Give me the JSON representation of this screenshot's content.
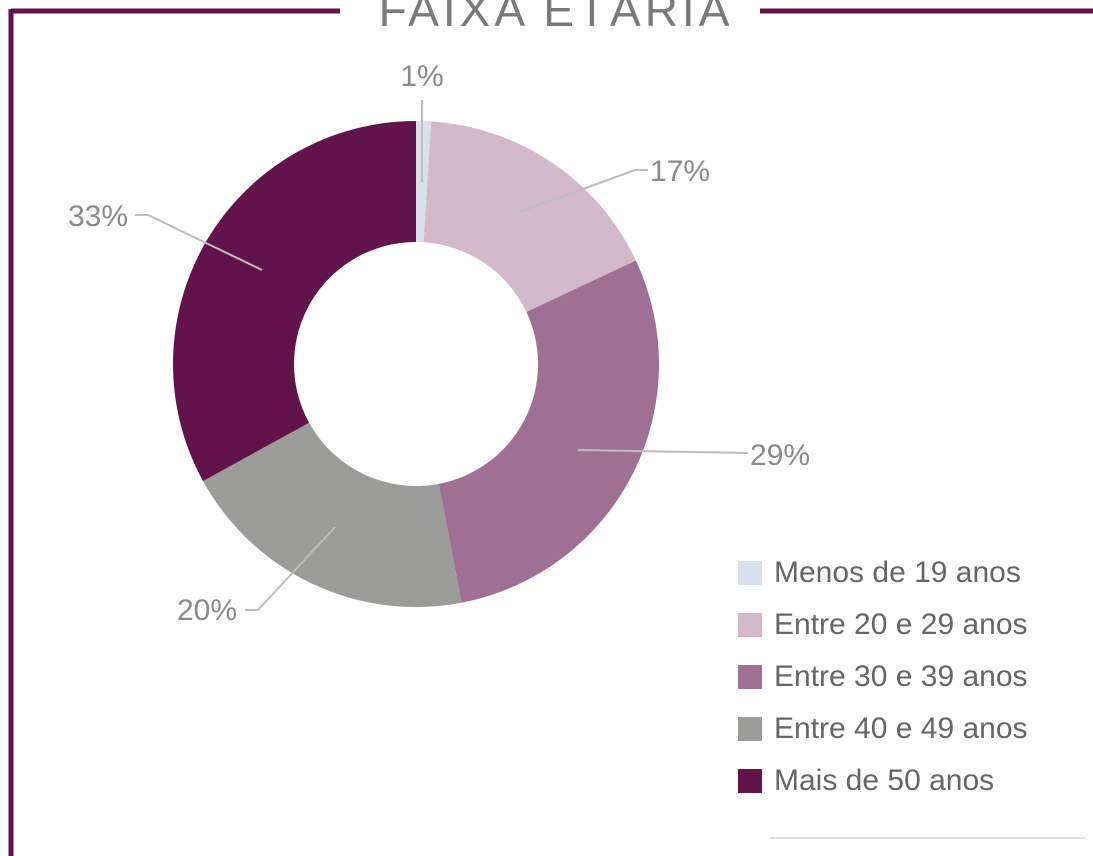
{
  "chart_data": {
    "type": "donut",
    "title": "FAIXA ETÁRIA",
    "categories": [
      "Menos de 19 anos",
      "Entre 20 e 29 anos",
      "Entre 30 e 39 anos",
      "Entre 40 e 49 anos",
      "Mais de 50 anos"
    ],
    "values": [
      1,
      17,
      29,
      20,
      33
    ],
    "value_labels": [
      "1%",
      "17%",
      "29%",
      "20%",
      "33%"
    ],
    "colors": [
      "#d6e1eb",
      "#d3b7cb",
      "#a07094",
      "#9b9b99",
      "#63134b"
    ],
    "legend": "bottom-right"
  }
}
